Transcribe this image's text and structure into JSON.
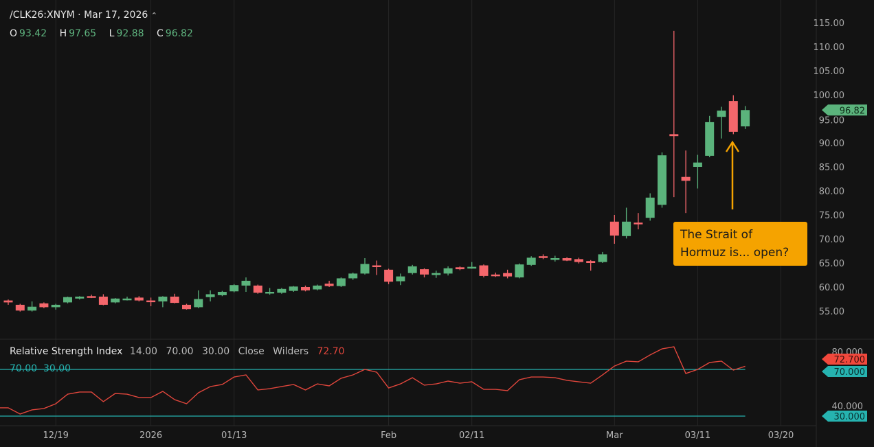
{
  "header": {
    "symbol": "/CLK26:XNYM",
    "date": "Mar 17, 2026",
    "caret_icon": "chevron-up-icon",
    "ohlc": {
      "O": "93.42",
      "H": "97.65",
      "L": "92.88",
      "C": "96.82"
    }
  },
  "colors": {
    "up": "#5bb37c",
    "down": "#f5676c",
    "rsi_line": "#e0463c",
    "rsi_levels": "#26b3b0",
    "annotation": "#f5a300",
    "background": "#131313"
  },
  "annotation": {
    "line1": "The Strait of",
    "line2": "Hormuz is... open?"
  },
  "rsi": {
    "name": "Relative Strength Index",
    "params": [
      "14.00",
      "70.00",
      "30.00",
      "Close",
      "Wilders"
    ],
    "value": "72.70",
    "levels_label": [
      "70.00",
      "30.00"
    ],
    "tags": {
      "value": "72.700",
      "upper": "70.000",
      "lower": "30.000"
    }
  },
  "chart_data": [
    {
      "type": "candlestick",
      "title": "/CLK26:XNYM",
      "ylim": [
        50,
        117
      ],
      "y_ticks": [
        "115.00",
        "110.00",
        "105.00",
        "100.00",
        "95.00",
        "90.00",
        "85.00",
        "80.00",
        "75.00",
        "70.00",
        "65.00",
        "60.00",
        "55.00"
      ],
      "last_price": "96.82",
      "x_ticks": [
        {
          "label": "12/19",
          "bar": 4
        },
        {
          "label": "2026",
          "bar": 12
        },
        {
          "label": "01/13",
          "bar": 19
        },
        {
          "label": "Feb",
          "bar": 32
        },
        {
          "label": "02/11",
          "bar": 39
        },
        {
          "label": "Mar",
          "bar": 51
        },
        {
          "label": "03/11",
          "bar": 58
        },
        {
          "label": "03/20",
          "bar": 65
        }
      ],
      "ohlc": [
        [
          57.2,
          57.4,
          56.3,
          56.8
        ],
        [
          56.3,
          56.5,
          54.9,
          55.1
        ],
        [
          55.1,
          57.0,
          54.9,
          55.9
        ],
        [
          56.6,
          56.8,
          55.6,
          55.8
        ],
        [
          55.8,
          56.5,
          55.3,
          56.3
        ],
        [
          56.8,
          58.0,
          56.6,
          57.9
        ],
        [
          57.6,
          58.1,
          57.4,
          58.0
        ],
        [
          58.1,
          58.4,
          57.7,
          57.8
        ],
        [
          58.0,
          58.5,
          56.2,
          56.3
        ],
        [
          56.8,
          57.7,
          56.6,
          57.6
        ],
        [
          57.4,
          58.0,
          57.2,
          57.6
        ],
        [
          57.8,
          58.1,
          57.0,
          57.2
        ],
        [
          57.2,
          57.8,
          56.0,
          56.9
        ],
        [
          57.0,
          58.1,
          55.8,
          58.0
        ],
        [
          58.0,
          58.6,
          56.6,
          56.7
        ],
        [
          56.3,
          56.5,
          55.3,
          55.4
        ],
        [
          55.8,
          59.3,
          55.6,
          57.5
        ],
        [
          57.9,
          59.3,
          57.0,
          58.5
        ],
        [
          58.3,
          59.2,
          58.1,
          59.0
        ],
        [
          59.1,
          60.6,
          58.9,
          60.4
        ],
        [
          60.3,
          62.0,
          59.0,
          61.3
        ],
        [
          60.3,
          60.5,
          58.6,
          58.8
        ],
        [
          58.8,
          59.8,
          58.4,
          59.0
        ],
        [
          58.8,
          59.8,
          58.6,
          59.6
        ],
        [
          59.2,
          60.2,
          59.0,
          60.1
        ],
        [
          60.0,
          60.3,
          59.1,
          59.3
        ],
        [
          59.5,
          60.5,
          59.3,
          60.3
        ],
        [
          60.7,
          61.3,
          60.0,
          60.2
        ],
        [
          60.2,
          62.0,
          60.0,
          61.8
        ],
        [
          61.8,
          63.0,
          61.5,
          62.8
        ],
        [
          62.8,
          66.0,
          62.6,
          64.8
        ],
        [
          64.5,
          65.5,
          62.5,
          64.3
        ],
        [
          63.6,
          63.8,
          60.6,
          61.1
        ],
        [
          61.2,
          62.8,
          60.4,
          62.2
        ],
        [
          62.9,
          64.6,
          62.6,
          64.3
        ],
        [
          63.7,
          63.9,
          62.0,
          62.6
        ],
        [
          62.5,
          63.4,
          61.9,
          62.9
        ],
        [
          62.8,
          64.3,
          62.4,
          63.9
        ],
        [
          64.1,
          64.3,
          63.5,
          63.7
        ],
        [
          64.0,
          65.2,
          63.8,
          64.2
        ],
        [
          64.5,
          64.7,
          62.0,
          62.3
        ],
        [
          62.6,
          63.0,
          62.1,
          62.4
        ],
        [
          62.9,
          63.6,
          61.8,
          62.2
        ],
        [
          62.0,
          64.9,
          61.8,
          64.7
        ],
        [
          64.6,
          66.4,
          64.4,
          66.1
        ],
        [
          66.4,
          66.8,
          65.8,
          66.2
        ],
        [
          65.8,
          66.5,
          65.3,
          66.0
        ],
        [
          66.0,
          66.2,
          65.4,
          65.5
        ],
        [
          65.8,
          66.1,
          64.9,
          65.2
        ],
        [
          65.4,
          65.6,
          63.4,
          65.0
        ],
        [
          65.2,
          67.3,
          65.0,
          66.8
        ],
        [
          73.6,
          75.0,
          69.0,
          70.7
        ],
        [
          70.6,
          76.5,
          70.1,
          73.6
        ],
        [
          73.4,
          75.4,
          72.0,
          73.2
        ],
        [
          74.4,
          79.5,
          73.8,
          78.6
        ],
        [
          77.1,
          88.0,
          76.5,
          87.4
        ],
        [
          91.8,
          113.3,
          78.7,
          91.4
        ],
        [
          82.9,
          88.4,
          75.4,
          82.1
        ],
        [
          85.0,
          87.5,
          80.5,
          85.9
        ],
        [
          87.3,
          95.6,
          87.0,
          94.3
        ],
        [
          95.4,
          97.5,
          90.9,
          96.7
        ],
        [
          98.7,
          99.9,
          91.8,
          92.3
        ],
        [
          93.42,
          97.65,
          92.88,
          96.82
        ]
      ]
    },
    {
      "type": "line",
      "title": "Relative Strength Index",
      "ylim": [
        20,
        95
      ],
      "y_ticks": [
        "80.000",
        "40.000"
      ],
      "levels": [
        70,
        30
      ],
      "values": [
        37.1,
        31.8,
        35.3,
        36.5,
        40.6,
        48.8,
        50.6,
        50.6,
        42.4,
        49.4,
        48.8,
        45.9,
        45.9,
        51.2,
        44.1,
        40.6,
        50.0,
        55.3,
        57.1,
        63.5,
        65.3,
        52.4,
        53.5,
        55.3,
        57.1,
        52.4,
        57.6,
        55.9,
        62.4,
        65.3,
        70.0,
        67.6,
        54.1,
        57.6,
        62.9,
        56.5,
        57.6,
        60.0,
        58.2,
        59.4,
        52.9,
        52.9,
        51.8,
        61.2,
        63.5,
        63.5,
        62.9,
        60.6,
        59.4,
        58.2,
        65.3,
        72.9,
        77.1,
        76.5,
        82.4,
        87.6,
        89.4,
        66.5,
        70.0,
        75.9,
        77.1,
        69.4,
        72.7
      ]
    }
  ]
}
